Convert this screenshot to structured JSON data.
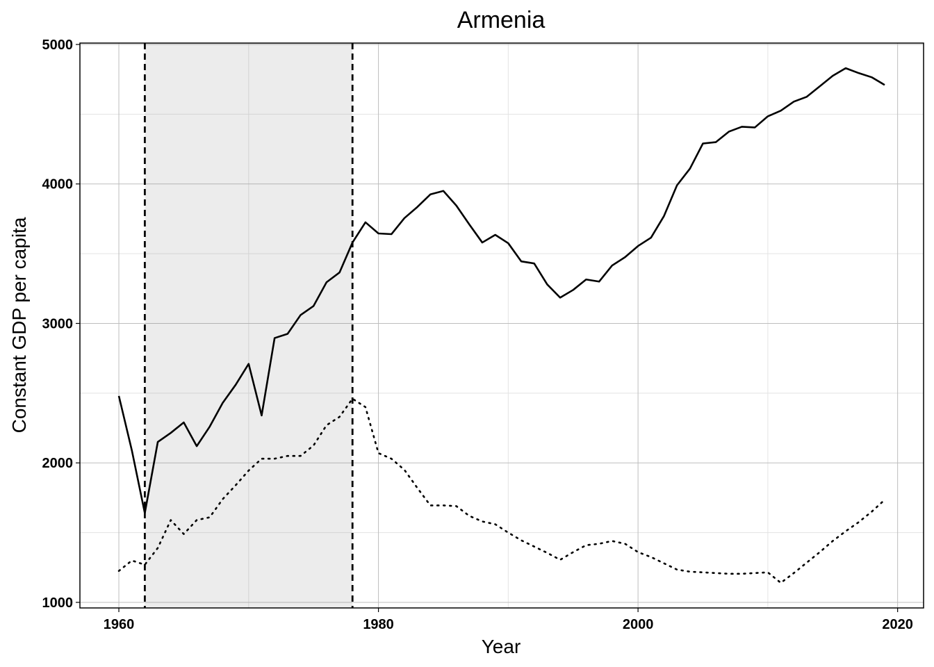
{
  "chart_data": {
    "type": "line",
    "title": "Armenia",
    "xlabel": "Year",
    "ylabel": "Constant GDP per capita",
    "xlim": [
      1957,
      2022
    ],
    "ylim": [
      960,
      5010
    ],
    "x_ticks": [
      1960,
      1980,
      2000,
      2020
    ],
    "y_ticks": [
      1000,
      2000,
      3000,
      4000,
      5000
    ],
    "grid": true,
    "legend": "none",
    "shaded_region": {
      "start": 1962,
      "end": 1978
    },
    "vertical_lines": [
      1962,
      1978
    ],
    "series": [
      {
        "style": "solid",
        "x": [
          1960,
          1961,
          1962,
          1963,
          1964,
          1965,
          1966,
          1967,
          1968,
          1969,
          1970,
          1971,
          1972,
          1973,
          1974,
          1975,
          1976,
          1977,
          1978,
          1979,
          1980,
          1981,
          1982,
          1983,
          1984,
          1985,
          1986,
          1987,
          1988,
          1989,
          1990,
          1991,
          1992,
          1993,
          1994,
          1995,
          1996,
          1997,
          1998,
          1999,
          2000,
          2001,
          2002,
          2003,
          2004,
          2005,
          2006,
          2007,
          2008,
          2009,
          2010,
          2011,
          2012,
          2013,
          2014,
          2015,
          2016,
          2017,
          2018,
          2019
        ],
        "values": [
          2480,
          2090,
          1640,
          2150,
          2215,
          2290,
          2120,
          2260,
          2430,
          2560,
          2710,
          2340,
          2895,
          2925,
          3060,
          3125,
          3295,
          3365,
          3580,
          3725,
          3645,
          3640,
          3755,
          3835,
          3925,
          3950,
          3845,
          3710,
          3580,
          3635,
          3575,
          3445,
          3430,
          3280,
          3185,
          3240,
          3315,
          3300,
          3415,
          3475,
          3555,
          3615,
          3770,
          3990,
          4110,
          4290,
          4300,
          4375,
          4410,
          4405,
          4485,
          4525,
          4590,
          4625,
          4700,
          4775,
          4830,
          4795,
          4765,
          4710
        ]
      },
      {
        "style": "dotted",
        "x": [
          1960,
          1961,
          1962,
          1963,
          1964,
          1965,
          1966,
          1967,
          1968,
          1969,
          1970,
          1971,
          1972,
          1973,
          1974,
          1975,
          1976,
          1977,
          1978,
          1979,
          1980,
          1981,
          1982,
          1983,
          1984,
          1985,
          1986,
          1987,
          1988,
          1989,
          1990,
          1991,
          1992,
          1993,
          1994,
          1995,
          1996,
          1997,
          1998,
          1999,
          2000,
          2001,
          2002,
          2003,
          2004,
          2005,
          2006,
          2007,
          2008,
          2009,
          2010,
          2011,
          2012,
          2013,
          2014,
          2015,
          2016,
          2017,
          2018,
          2019
        ],
        "values": [
          1225,
          1300,
          1270,
          1390,
          1590,
          1490,
          1590,
          1610,
          1740,
          1840,
          1945,
          2030,
          2030,
          2050,
          2050,
          2125,
          2270,
          2330,
          2460,
          2400,
          2070,
          2030,
          1950,
          1820,
          1695,
          1695,
          1690,
          1620,
          1580,
          1560,
          1500,
          1445,
          1400,
          1355,
          1305,
          1360,
          1410,
          1420,
          1440,
          1420,
          1360,
          1325,
          1280,
          1235,
          1220,
          1215,
          1210,
          1205,
          1205,
          1210,
          1215,
          1140,
          1210,
          1285,
          1360,
          1440,
          1510,
          1575,
          1650,
          1735
        ]
      }
    ]
  }
}
